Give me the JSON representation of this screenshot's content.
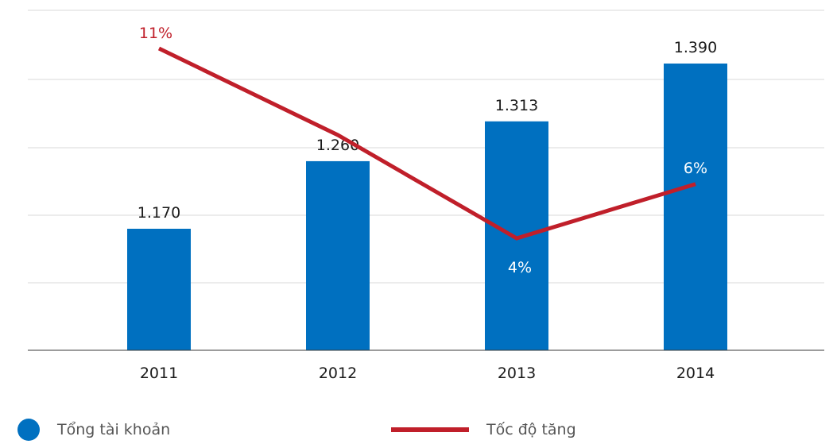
{
  "chart_data": {
    "type": "bar",
    "categories": [
      "2011",
      "2012",
      "2013",
      "2014"
    ],
    "series": [
      {
        "name": "Tổng tài khoản",
        "kind": "bar",
        "values": [
          1170,
          1260,
          1313,
          1390
        ],
        "labels": [
          "1.170",
          "1.260",
          "1.313",
          "1.390"
        ],
        "color": "#0070c0"
      },
      {
        "name": "Tốc độ tăng",
        "kind": "line",
        "values": [
          11,
          null,
          4,
          6
        ],
        "labels": [
          "11%",
          "",
          "4%",
          "6%"
        ],
        "color": "#c01f2a"
      }
    ],
    "title": "",
    "xlabel": "",
    "ylabel": "",
    "grid": true,
    "legend": "bottom"
  },
  "legend": {
    "items": [
      {
        "label": "Tổng tài khoản"
      },
      {
        "label": "Tốc độ tăng"
      }
    ]
  }
}
